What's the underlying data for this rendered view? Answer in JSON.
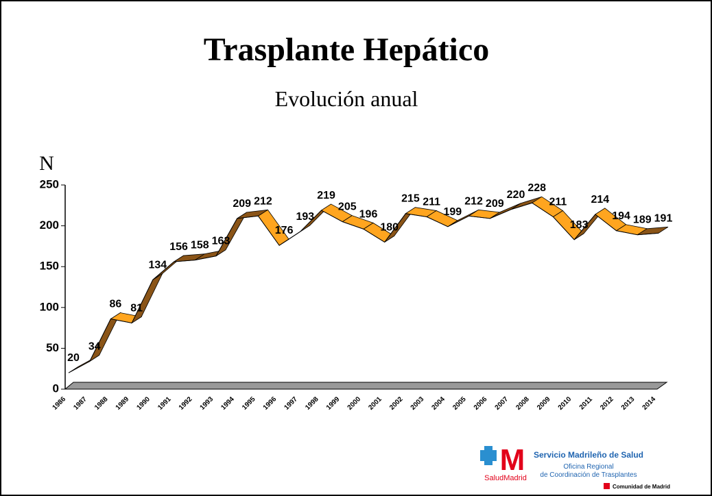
{
  "chart_data": {
    "type": "ribbon-line",
    "title": "Trasplante Hepático",
    "subtitle": "Evolución anual",
    "y_label": "N",
    "categories": [
      "1986",
      "1987",
      "1988",
      "1989",
      "1990",
      "1991",
      "1992",
      "1993",
      "1994",
      "1995",
      "1996",
      "1997",
      "1998",
      "1999",
      "2000",
      "2001",
      "2002",
      "2003",
      "2004",
      "2005",
      "2006",
      "2007",
      "2008",
      "2009",
      "2010",
      "2011",
      "2012",
      "2013",
      "2014"
    ],
    "series": [
      {
        "name": "Trasplante Hepático",
        "color": "#ffa51f",
        "underside_color": "#8a5417",
        "values": [
          20,
          34,
          86,
          81,
          134,
          156,
          158,
          163,
          209,
          212,
          176,
          193,
          219,
          205,
          196,
          180,
          215,
          211,
          199,
          212,
          209,
          220,
          228,
          211,
          183,
          214,
          194,
          189,
          191
        ]
      }
    ],
    "ylim": [
      0,
      250
    ],
    "yticks": [
      0,
      50,
      100,
      150,
      200,
      250
    ],
    "grid": false
  },
  "logo": {
    "mark": "M",
    "brand": "SaludMadrid",
    "name": "Servicio Madrileño de Salud",
    "office_1": "Oficina Regional",
    "office_2": "de Coordinación de Trasplantes",
    "region": "Comunidad de Madrid"
  }
}
